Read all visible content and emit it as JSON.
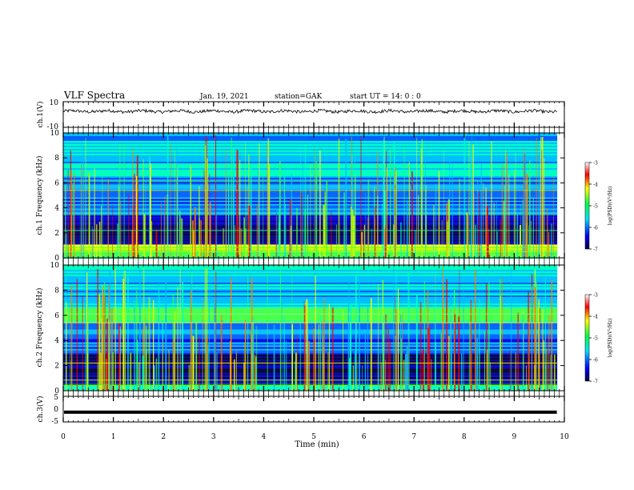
{
  "header": {
    "title": "VLF Spectra",
    "date": "Jan. 19, 2021",
    "station": "station=GAK",
    "start_ut": "start UT =  14: 0  : 0"
  },
  "colorbar": {
    "ticks": [
      "-3",
      "-4",
      "-5",
      "-6",
      "-7"
    ],
    "label": "log(PSD)(V²/Hz)",
    "colors": [
      "#000040",
      "#0000ff",
      "#00e0ff",
      "#00ff40",
      "#ffff00",
      "#ff0000",
      "#ffffff"
    ]
  },
  "chart_data": [
    {
      "type": "line",
      "name": "ch1-waveform",
      "ylabel": "ch.1(V)",
      "ylim": [
        -10,
        10
      ],
      "y_ticks": [
        "10",
        "-10"
      ],
      "x_range_min": [
        0,
        10
      ],
      "approx_mean": 2.5,
      "approx_amplitude": 1.5
    },
    {
      "type": "heatmap",
      "name": "ch1-spectrogram",
      "ylabel": "ch.1 Frequency (kHz)",
      "ylim_khz": [
        0,
        10
      ],
      "y_ticks": [
        "0",
        "2",
        "4",
        "6",
        "8",
        "10"
      ],
      "x_range_min": [
        0,
        10
      ],
      "data_end_min": 9.85,
      "background_bands_khz": [
        {
          "from": 0.0,
          "to": 0.7,
          "level": "high"
        },
        {
          "from": 0.7,
          "to": 1.1,
          "level": "very-high"
        },
        {
          "from": 1.1,
          "to": 3.5,
          "level": "low"
        },
        {
          "from": 3.5,
          "to": 6.5,
          "level": "medium"
        },
        {
          "from": 6.5,
          "to": 10.0,
          "level": "medium-high"
        }
      ]
    },
    {
      "type": "heatmap",
      "name": "ch2-spectrogram",
      "ylabel": "ch.2 Frequency (kHz)",
      "ylim_khz": [
        0,
        10
      ],
      "y_ticks": [
        "0",
        "2",
        "4",
        "6",
        "8",
        "10"
      ],
      "x_range_min": [
        0,
        10
      ],
      "data_end_min": 9.85,
      "background_bands_khz": [
        {
          "from": 0.0,
          "to": 0.5,
          "level": "high"
        },
        {
          "from": 0.5,
          "to": 3.0,
          "level": "low"
        },
        {
          "from": 3.0,
          "to": 5.5,
          "level": "medium"
        },
        {
          "from": 5.5,
          "to": 6.8,
          "level": "high"
        },
        {
          "from": 6.8,
          "to": 10.0,
          "level": "medium-high"
        }
      ]
    },
    {
      "type": "line",
      "name": "ch3-waveform",
      "ylabel": "ch.3(V)",
      "ylim": [
        -5,
        5
      ],
      "y_ticks": [
        "5",
        "0",
        "-5"
      ],
      "x_range_min": [
        0,
        10
      ],
      "approx_mean": -1.2
    }
  ],
  "x_axis": {
    "label": "Time (min)",
    "ticks": [
      "0",
      "1",
      "2",
      "3",
      "4",
      "5",
      "6",
      "7",
      "8",
      "9",
      "10"
    ]
  }
}
